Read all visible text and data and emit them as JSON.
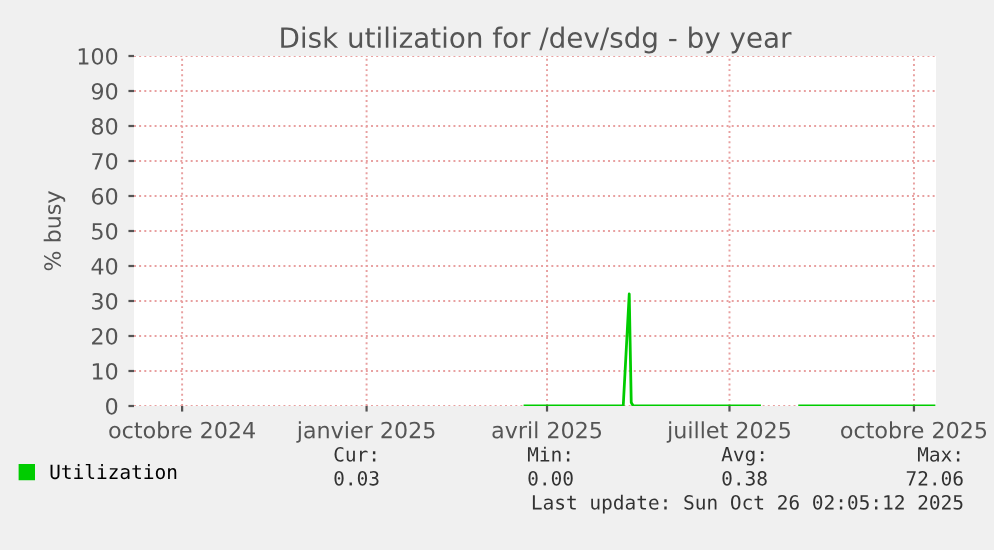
{
  "chart_data": {
    "type": "line",
    "title": "Disk utilization for /dev/sdg - by year",
    "ylabel": "% busy",
    "xlim": [
      "2024-09-21",
      "2025-10-26"
    ],
    "xticks": [
      {
        "value": "2024-10-15",
        "label": "octobre 2024"
      },
      {
        "value": "2025-01-15",
        "label": "janvier 2025"
      },
      {
        "value": "2025-04-15",
        "label": "avril 2025"
      },
      {
        "value": "2025-07-15",
        "label": "juillet 2025"
      },
      {
        "value": "2025-10-15",
        "label": "octobre 2025"
      }
    ],
    "ylim": [
      0,
      100
    ],
    "yticks": [
      0,
      10,
      20,
      30,
      40,
      50,
      60,
      70,
      80,
      90,
      100
    ],
    "grid": true,
    "legend": "bottom left",
    "series": [
      {
        "name": "Utilization",
        "color": "#00cc00",
        "x": [
          "2025-04-04",
          "2025-05-23",
          "2025-05-26",
          "2025-05-27",
          "2025-05-28",
          "2025-07-30",
          "2025-07-31",
          "2025-08-19",
          "2025-10-25"
        ],
        "values": [
          0,
          0,
          32,
          1,
          0,
          0,
          null,
          0,
          0
        ]
      }
    ],
    "annotations": [
      "Cur:",
      "Min:",
      "Avg:",
      "Max:",
      "0.03",
      "0.00",
      "0.38",
      "72.06",
      "Last update: Sun Oct 26 02:05:12 2025"
    ]
  }
}
